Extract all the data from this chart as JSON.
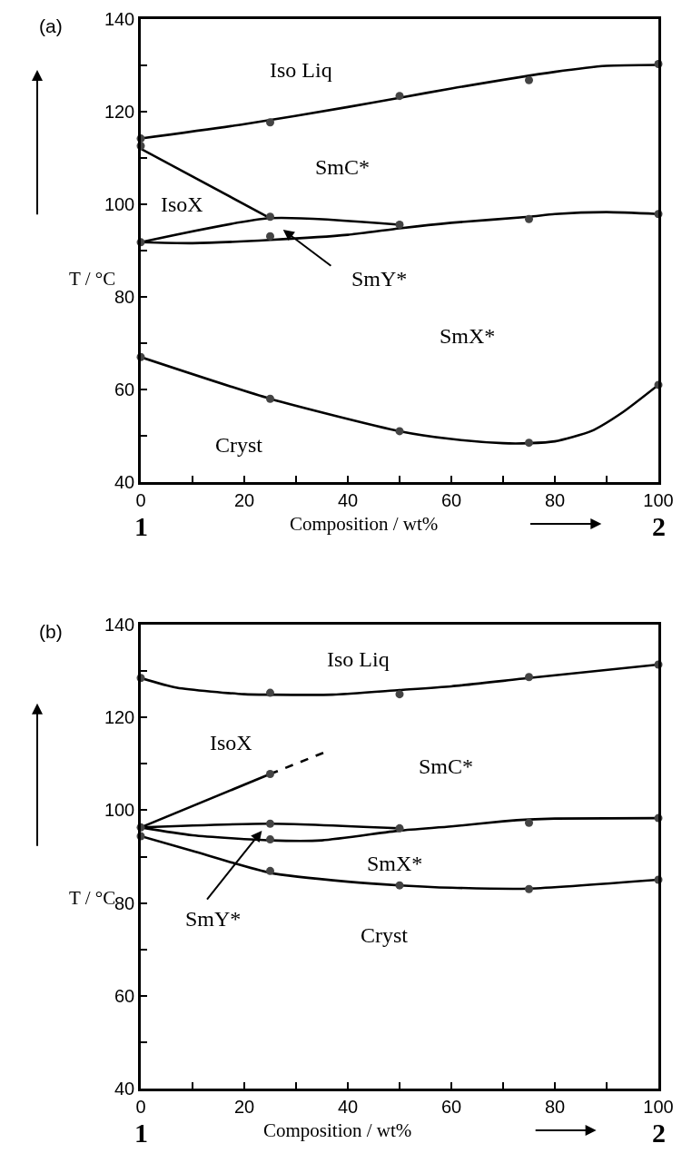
{
  "chart_data": [
    {
      "type": "line",
      "title": "(a)",
      "xlabel": "Composition / wt%",
      "ylabel": "T / °C",
      "xlim": [
        0,
        100
      ],
      "ylim": [
        40,
        140
      ],
      "xticks": [
        0,
        {
          "value": 10,
          "label": null
        },
        20,
        {
          "value": 30,
          "label": null
        },
        40,
        {
          "value": 50,
          "label": null
        },
        60,
        {
          "value": 70,
          "label": null
        },
        80,
        {
          "value": 90,
          "label": null
        },
        100
      ],
      "yticks": [
        40,
        {
          "value": 50,
          "label": null
        },
        60,
        {
          "value": 70,
          "label": null
        },
        80,
        {
          "value": 90,
          "label": null
        },
        100,
        {
          "value": 110,
          "label": null
        },
        120,
        {
          "value": 130,
          "label": null
        },
        140
      ],
      "series": [
        {
          "type": "line",
          "color": "#000000",
          "x": [
            0,
            20,
            40,
            50,
            60,
            80,
            90,
            100
          ],
          "values": [
            114.2,
            117.3,
            121,
            123,
            125,
            128.6,
            129.9,
            130.1
          ]
        },
        {
          "type": "line",
          "color": "#000000",
          "x": [
            0,
            25
          ],
          "values": [
            112,
            97
          ]
        },
        {
          "type": "line",
          "color": "#000000",
          "x": [
            0,
            25,
            50
          ],
          "values": [
            91.8,
            97,
            95.6
          ]
        },
        {
          "type": "line",
          "color": "#000000",
          "x": [
            0,
            10,
            25,
            40,
            50,
            60,
            75,
            80,
            90,
            100
          ],
          "values": [
            91.8,
            91.6,
            92.3,
            93.4,
            94.8,
            96,
            97.3,
            97.9,
            98.3,
            97.9
          ]
        },
        {
          "type": "line",
          "color": "#000000",
          "x": [
            0,
            25,
            50,
            60,
            70,
            75,
            80,
            87,
            93,
            100
          ],
          "values": [
            67,
            58,
            51,
            49.3,
            48.4,
            48.4,
            48.8,
            51,
            55,
            61
          ]
        },
        {
          "type": "scatter",
          "marker": "circle",
          "color": "#444444",
          "x": [
            0,
            25,
            50,
            75,
            100,
            0,
            25,
            25,
            50,
            75,
            100,
            0,
            0,
            25,
            50,
            75,
            100
          ],
          "values": [
            114.2,
            117.7,
            123.4,
            126.8,
            130.3,
            112.6,
            97.3,
            93.1,
            95.6,
            96.8,
            97.9,
            91.8,
            67,
            58,
            51,
            48.5,
            61
          ]
        }
      ],
      "annotations": [
        "Iso Liq",
        "SmC*",
        "IsoX",
        "SmY*",
        "SmX*",
        "Cryst",
        "1",
        "2"
      ]
    },
    {
      "type": "line",
      "title": "(b)",
      "xlabel": "Composition / wt%",
      "ylabel": "T / °C",
      "xlim": [
        0,
        100
      ],
      "ylim": [
        40,
        140
      ],
      "xticks": [
        0,
        {
          "value": 10,
          "label": null
        },
        20,
        {
          "value": 30,
          "label": null
        },
        40,
        {
          "value": 50,
          "label": null
        },
        60,
        {
          "value": 70,
          "label": null
        },
        80,
        {
          "value": 90,
          "label": null
        },
        100
      ],
      "yticks": [
        40,
        {
          "value": 50,
          "label": null
        },
        60,
        {
          "value": 70,
          "label": null
        },
        80,
        {
          "value": 90,
          "label": null
        },
        100,
        {
          "value": 110,
          "label": null
        },
        120,
        {
          "value": 130,
          "label": null
        },
        140
      ],
      "series": [
        {
          "type": "line",
          "color": "#000000",
          "x": [
            0,
            7,
            20,
            25,
            37,
            50,
            60,
            75,
            100
          ],
          "values": [
            128.5,
            126.4,
            125,
            124.9,
            124.9,
            125.9,
            126.7,
            128.5,
            131.4
          ]
        },
        {
          "type": "line",
          "color": "#000000",
          "x": [
            0,
            25
          ],
          "values": [
            96.3,
            107.8
          ]
        },
        {
          "type": "line",
          "color": "#000000",
          "line_style": "dashed",
          "x": [
            25,
            36
          ],
          "values": [
            107.8,
            112.7
          ]
        },
        {
          "type": "line",
          "color": "#000000",
          "x": [
            0,
            25,
            50
          ],
          "values": [
            96.3,
            97.1,
            96.1
          ]
        },
        {
          "type": "line",
          "color": "#000000",
          "x": [
            0,
            10,
            25,
            35,
            50,
            60,
            70,
            75,
            80,
            100
          ],
          "values": [
            96.3,
            94.6,
            93.5,
            93.5,
            95.6,
            96.5,
            97.6,
            98,
            98.2,
            98.3
          ]
        },
        {
          "type": "line",
          "color": "#000000",
          "x": [
            0,
            10,
            25,
            40,
            50,
            60,
            75,
            100
          ],
          "values": [
            94.4,
            91.2,
            86.5,
            84.6,
            83.8,
            83.3,
            83.1,
            85
          ]
        },
        {
          "type": "scatter",
          "marker": "circle",
          "color": "#444444",
          "x": [
            0,
            25,
            50,
            75,
            100,
            25,
            0,
            25,
            50,
            75,
            100,
            25,
            0,
            25,
            50,
            75,
            100
          ],
          "values": [
            128.5,
            125.3,
            125,
            128.7,
            131.4,
            107.8,
            96.3,
            97.1,
            96.1,
            97.3,
            98.3,
            93.7,
            94.4,
            86.9,
            83.8,
            83,
            85
          ]
        }
      ],
      "annotations": [
        "Iso Liq",
        "IsoX",
        "SmC*",
        "SmX*",
        "SmY*",
        "Cryst",
        "1",
        "2"
      ]
    }
  ]
}
